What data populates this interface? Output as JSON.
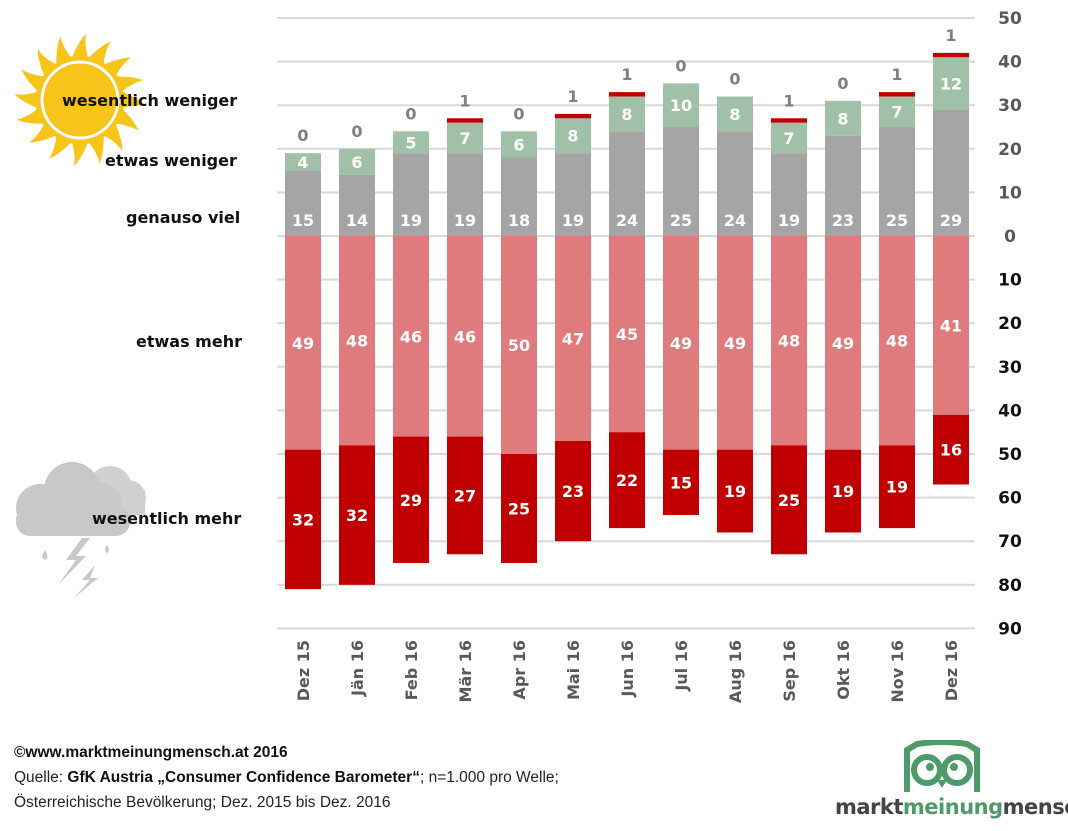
{
  "chart_data": {
    "type": "bar",
    "stacked": "diverging",
    "title": "",
    "xlabel": "",
    "ylabel": "",
    "categories": [
      "Dez 15",
      "Jän 16",
      "Feb 16",
      "Mär 16",
      "Apr 16",
      "Mai 16",
      "Jun 16",
      "Jul 16",
      "Aug 16",
      "Sep 16",
      "Okt 16",
      "Nov 16",
      "Dez 16"
    ],
    "series": [
      {
        "name": "wesentlich weniger",
        "direction": "up",
        "color": "#c00000",
        "values": [
          0,
          0,
          0,
          1,
          0,
          1,
          1,
          0,
          0,
          1,
          0,
          1,
          1
        ]
      },
      {
        "name": "etwas weniger",
        "direction": "up",
        "color": "#a0c0a8",
        "values": [
          4,
          6,
          5,
          7,
          6,
          8,
          8,
          10,
          8,
          7,
          8,
          7,
          12
        ]
      },
      {
        "name": "genauso viel",
        "direction": "up",
        "color": "#a5a5a5",
        "values": [
          15,
          14,
          19,
          19,
          18,
          19,
          24,
          25,
          24,
          19,
          23,
          25,
          29
        ]
      },
      {
        "name": "etwas mehr",
        "direction": "down",
        "color": "#e07b7d",
        "values": [
          49,
          48,
          46,
          46,
          50,
          47,
          45,
          49,
          49,
          48,
          49,
          48,
          41
        ]
      },
      {
        "name": "wesentlich mehr",
        "direction": "down",
        "color": "#c00000",
        "values": [
          32,
          32,
          29,
          27,
          25,
          23,
          22,
          15,
          19,
          25,
          19,
          19,
          16
        ]
      }
    ],
    "y_upper_ticks": [
      "50",
      "40",
      "30",
      "20",
      "10",
      "0"
    ],
    "y_lower_ticks": [
      "10",
      "20",
      "30",
      "40",
      "50",
      "60",
      "70",
      "80",
      "90"
    ],
    "ylim_up": 50,
    "ylim_down": 90,
    "grid": true,
    "axis_side": "right"
  },
  "labels": {
    "wesentlich_weniger": "wesentlich weniger",
    "etwas_weniger": "etwas weniger",
    "genauso_viel": "genauso viel",
    "etwas_mehr": "etwas mehr",
    "wesentlich_mehr": "wesentlich mehr"
  },
  "icons": {
    "top": "sun-icon",
    "bottom": "thunderstorm-cloud-icon"
  },
  "footer": {
    "copyright": "©www.marktmeinungmensch.at 2016",
    "source_prefix": "Quelle: ",
    "source_bold": "GfK Austria „Consumer Confidence Barometer“",
    "source_suffix": "; n=1.000 pro Welle;",
    "population": "Österreichische Bevölkerung; Dez. 2015 bis Dez. 2016"
  },
  "logo": {
    "part1": "markt",
    "part2": "meinung",
    "part3": "mensch",
    "accent_color": "#4e9a6a"
  }
}
